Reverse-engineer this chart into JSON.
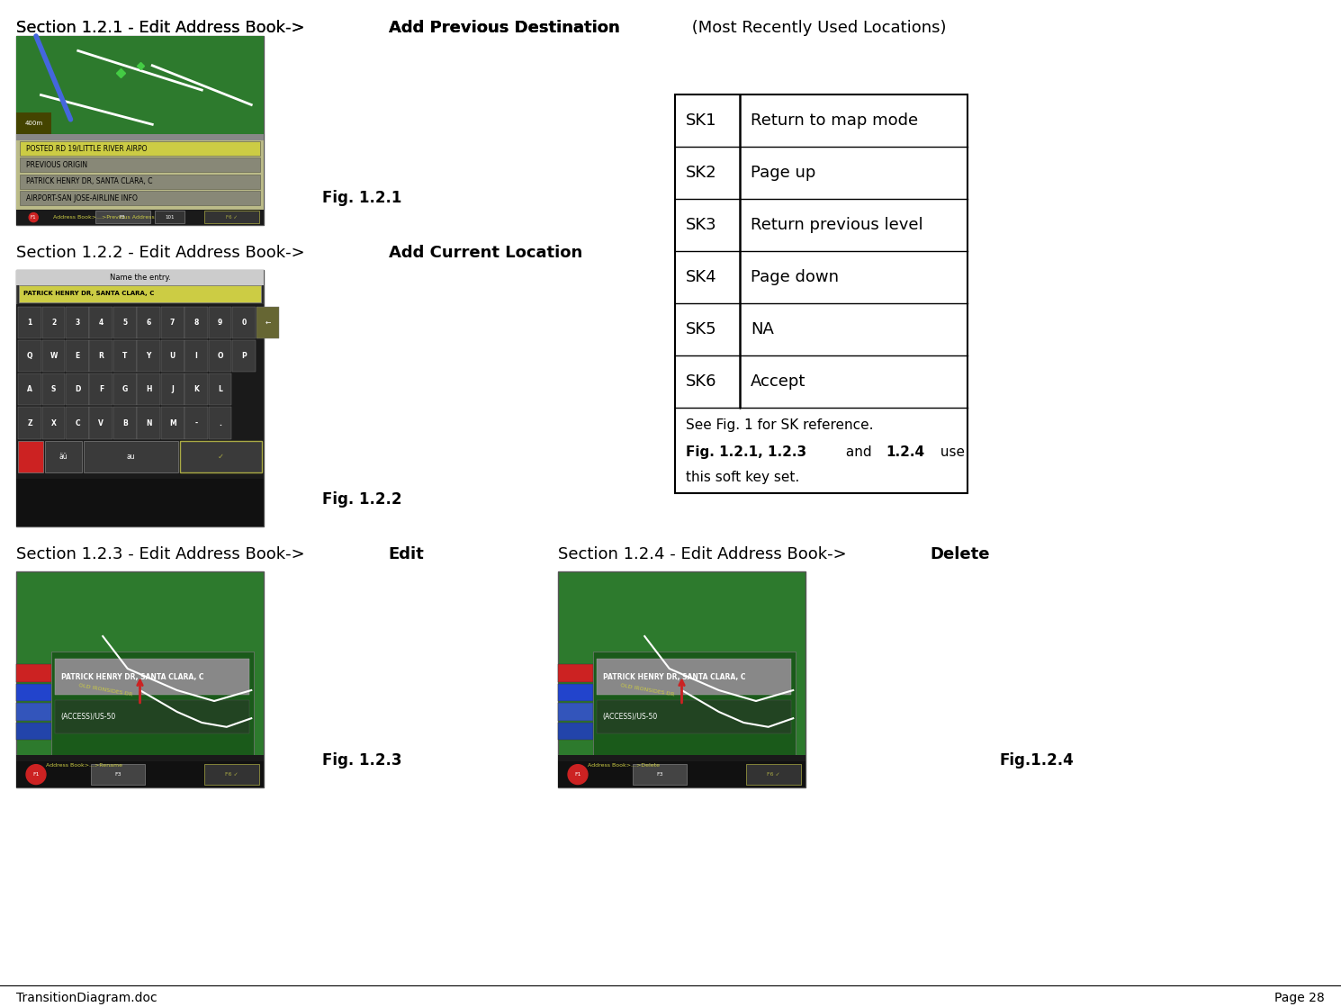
{
  "title": "TransitionDiagram.doc",
  "page": "Page 28",
  "background_color": "#ffffff",
  "section1_normal": "Section 1.2.1 - Edit Address Book->",
  "section1_bold": "Add Previous Destination",
  "section1_paren": " (Most Recently Used Locations)",
  "fig1_label": "Fig. 1.2.1",
  "section2_normal": "Section 1.2.2 - Edit Address Book->",
  "section2_bold": "Add Current Location",
  "fig2_label": "Fig. 1.2.2",
  "section3_normal": "Section 1.2.3 - Edit Address Book->",
  "section3_bold": "Edit",
  "fig3_label": "Fig. 1.2.3",
  "section4_normal": "Section 1.2.4 - Edit Address Book->",
  "section4_bold": "Delete",
  "fig4_label": "Fig.1.2.4",
  "table_sk": [
    "SK1",
    "SK2",
    "SK3",
    "SK4",
    "SK5",
    "SK6"
  ],
  "table_desc": [
    "Return to map mode",
    "Page up",
    "Return previous level",
    "Page down",
    "NA",
    "Accept"
  ],
  "note_line1": "See Fig. 1 for SK reference.",
  "note_bold1": "Fig. 1.2.1, 1.2.3",
  "note_mid": " and ",
  "note_bold2": "1.2.4",
  "note_end": " use",
  "note_line3": "this soft key set."
}
